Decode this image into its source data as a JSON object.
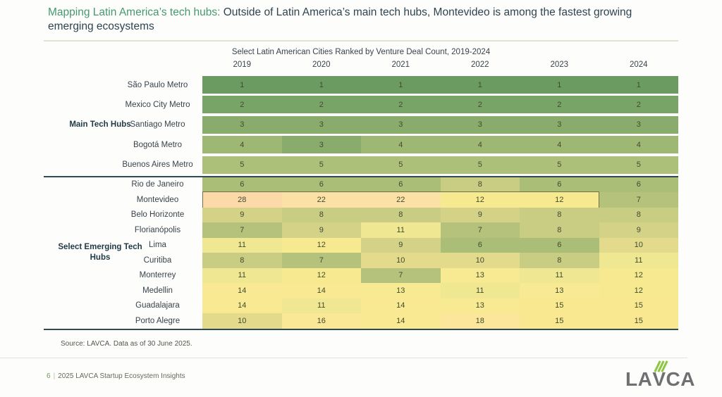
{
  "header": {
    "title_highlight": "Mapping Latin America’s tech hubs:",
    "title_rest": " Outside of Latin America’s main tech hubs, Montevideo is among the fastest growing emerging ecosystems"
  },
  "chart_data": {
    "type": "heatmap",
    "title": "Select Latin American Cities Ranked by Venture Deal Count, 2019-2024",
    "columns": [
      "2019",
      "2020",
      "2021",
      "2022",
      "2023",
      "2024"
    ],
    "groups": [
      {
        "label": "Main Tech Hubs",
        "rows": [
          {
            "city": "São Paulo Metro",
            "values": [
              1,
              1,
              1,
              1,
              1,
              1
            ]
          },
          {
            "city": "Mexico City Metro",
            "values": [
              2,
              2,
              2,
              2,
              2,
              2
            ]
          },
          {
            "city": "Santiago Metro",
            "values": [
              3,
              3,
              3,
              3,
              3,
              3
            ]
          },
          {
            "city": "Bogotá Metro",
            "values": [
              4,
              3,
              4,
              4,
              4,
              4
            ]
          },
          {
            "city": "Buenos Aires Metro",
            "values": [
              5,
              5,
              5,
              5,
              5,
              5
            ]
          }
        ]
      },
      {
        "label": "Select Emerging Tech Hubs",
        "rows": [
          {
            "city": "Rio de Janeiro",
            "values": [
              6,
              6,
              6,
              8,
              6,
              6
            ]
          },
          {
            "city": "Montevideo",
            "values": [
              28,
              22,
              22,
              12,
              12,
              7
            ],
            "highlight_cols": 5
          },
          {
            "city": "Belo Horizonte",
            "values": [
              9,
              8,
              8,
              9,
              8,
              8
            ]
          },
          {
            "city": "Florianópolis",
            "values": [
              7,
              9,
              11,
              7,
              8,
              9
            ]
          },
          {
            "city": "Lima",
            "values": [
              11,
              12,
              9,
              6,
              6,
              10
            ]
          },
          {
            "city": "Curitiba",
            "values": [
              8,
              7,
              10,
              10,
              8,
              11
            ]
          },
          {
            "city": "Monterrey",
            "values": [
              11,
              12,
              7,
              13,
              11,
              12
            ]
          },
          {
            "city": "Medellin",
            "values": [
              14,
              14,
              13,
              11,
              13,
              12
            ]
          },
          {
            "city": "Guadalajara",
            "values": [
              14,
              11,
              14,
              13,
              15,
              15
            ]
          },
          {
            "city": "Porto Alegre",
            "values": [
              10,
              16,
              14,
              18,
              15,
              15
            ]
          }
        ]
      }
    ],
    "color_scale": {
      "1": "#6b9b61",
      "2": "#79a468",
      "3": "#89ac6d",
      "4": "#9eb873",
      "5": "#adc07a",
      "6": "#aabe77",
      "7": "#b5c27c",
      "8": "#c9cc83",
      "9": "#d4d287",
      "10": "#e3da8c",
      "11": "#f0e792",
      "12": "#f7e98f",
      "13": "#f8ea92",
      "14": "#f8e992",
      "15": "#f9e890",
      "16": "#fae897",
      "18": "#fbe69c",
      "22": "#fbe1a5",
      "28": "#fbd9a9"
    },
    "legend_position": "none",
    "grid": false
  },
  "source": "Source: LAVCA. Data as of 30 June 2025.",
  "footer": {
    "page_number": "6",
    "separator": "|",
    "text": "2025 LAVCA Startup Ecosystem Insights"
  },
  "logo": {
    "left": "LA",
    "v": "V",
    "right": "CA"
  },
  "colors": {
    "title_accent": "#47986f",
    "title_dark": "#2e4450",
    "section_rule": "#2e4b52",
    "logo_gray": "#6e7071",
    "logo_green": "#8dc63f"
  }
}
